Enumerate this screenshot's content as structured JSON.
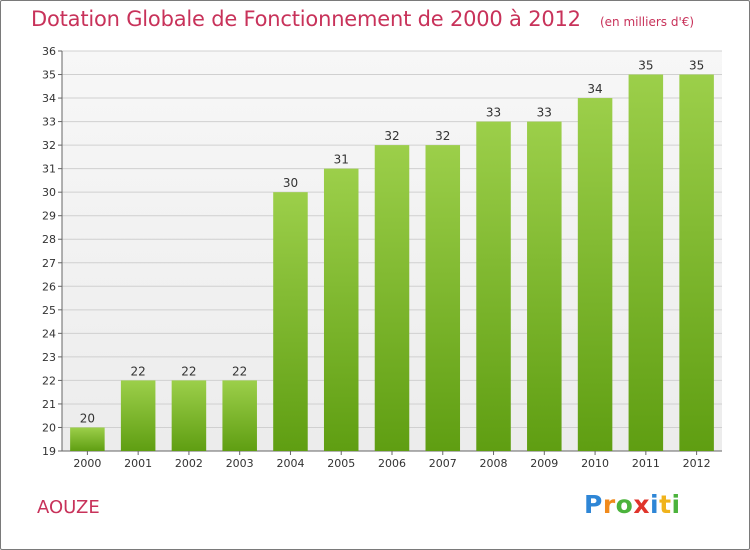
{
  "header": {
    "title": "Dotation Globale de Fonctionnement de 2000 à 2012",
    "subtitle": "(en milliers d'€)"
  },
  "footer": {
    "commune": "AOUZE",
    "logo_text": "Proxiti"
  },
  "colors": {
    "title": "#c8325a",
    "bar_light": "#9ccf4a",
    "bar_dark": "#5f9e12",
    "grid": "#d0d0d0",
    "plot_background": "#ececec"
  },
  "chart_data": {
    "type": "bar",
    "categories": [
      "2000",
      "2001",
      "2002",
      "2003",
      "2004",
      "2005",
      "2006",
      "2007",
      "2008",
      "2009",
      "2010",
      "2011",
      "2012"
    ],
    "values": [
      20,
      22,
      22,
      22,
      30,
      31,
      32,
      32,
      33,
      33,
      34,
      35,
      35
    ],
    "ylim": [
      19,
      36
    ],
    "ytick_step": 1,
    "grid": true,
    "xlabel": "",
    "ylabel": ""
  }
}
